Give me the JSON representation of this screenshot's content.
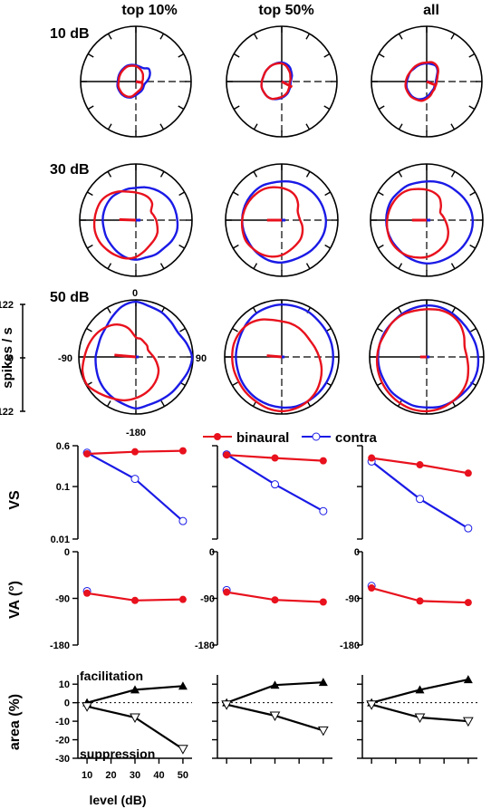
{
  "chart_data": {
    "type": "line",
    "column_titles": [
      "top 10%",
      "top 50%",
      "all"
    ],
    "colors": {
      "binaural": "#e8111d",
      "contra": "#1a1ae6",
      "axis": "#000000"
    },
    "polar": {
      "row_labels": [
        "10 dB",
        "30 dB",
        "50 dB"
      ],
      "rlim": [
        0,
        122
      ],
      "ylabel": "spikes / s",
      "radial_ticks": [
        "122",
        "0",
        "122"
      ],
      "angle_labels": {
        "top": "0",
        "left": "-90",
        "right": "90",
        "bottom": "-180"
      },
      "angles_deg": [
        0,
        15,
        30,
        45,
        60,
        75,
        90,
        105,
        120,
        135,
        150,
        165,
        180,
        195,
        210,
        225,
        240,
        255,
        270,
        285,
        300,
        315,
        330,
        345
      ],
      "panels": [
        [
          {
            "binaural": [
              34,
              30,
              26,
              22,
              18,
              16,
              14,
              15,
              16,
              18,
              20,
              22,
              26,
              34,
              38,
              40,
              40,
              40,
              38,
              38,
              38,
              38,
              38,
              36
            ],
            "contra": [
              36,
              34,
              34,
              40,
              36,
              30,
              24,
              20,
              20,
              22,
              24,
              26,
              30,
              36,
              40,
              42,
              42,
              42,
              40,
              40,
              40,
              40,
              40,
              38
            ],
            "vec_binaural": [
              100,
              14
            ],
            "vec_contra": [
              100,
              8
            ]
          },
          {
            "binaural": [
              40,
              36,
              30,
              26,
              22,
              20,
              18,
              18,
              20,
              22,
              26,
              30,
              34,
              38,
              44,
              46,
              46,
              46,
              44,
              42,
              42,
              42,
              42,
              41
            ],
            "contra": [
              42,
              40,
              36,
              30,
              26,
              22,
              20,
              20,
              22,
              24,
              28,
              32,
              36,
              40,
              44,
              46,
              46,
              46,
              44,
              42,
              42,
              42,
              42,
              42
            ],
            "vec_binaural": [
              118,
              26
            ],
            "vec_contra": [
              110,
              10
            ]
          },
          {
            "binaural": [
              42,
              44,
              42,
              36,
              28,
              24,
              22,
              22,
              22,
              24,
              26,
              32,
              38,
              44,
              46,
              48,
              48,
              48,
              46,
              44,
              42,
              42,
              42,
              42
            ],
            "contra": [
              40,
              40,
              40,
              34,
              26,
              22,
              20,
              20,
              20,
              22,
              24,
              28,
              34,
              40,
              44,
              46,
              46,
              46,
              44,
              42,
              42,
              40,
              40,
              40
            ],
            "vec_binaural": [
              112,
              22
            ],
            "vec_contra": [
              100,
              8
            ]
          }
        ],
        [
          {
            "binaural": [
              60,
              58,
              56,
              50,
              38,
              40,
              44,
              48,
              54,
              58,
              62,
              70,
              80,
              86,
              88,
              90,
              92,
              92,
              90,
              88,
              86,
              80,
              72,
              64
            ],
            "contra": [
              70,
              74,
              78,
              82,
              86,
              88,
              90,
              92,
              90,
              86,
              86,
              84,
              86,
              84,
              80,
              76,
              74,
              72,
              72,
              72,
              72,
              72,
              70,
              70
            ],
            "vec_binaural": [
              -88,
              36
            ],
            "vec_contra": [
              90,
              10
            ]
          },
          {
            "binaural": [
              70,
              66,
              60,
              50,
              40,
              38,
              40,
              46,
              52,
              58,
              62,
              68,
              76,
              82,
              86,
              88,
              90,
              88,
              86,
              84,
              82,
              80,
              78,
              74
            ],
            "contra": [
              84,
              86,
              88,
              90,
              92,
              94,
              96,
              96,
              94,
              92,
              90,
              90,
              92,
              92,
              90,
              88,
              86,
              86,
              86,
              86,
              86,
              86,
              86,
              84
            ],
            "vec_binaural": [
              -90,
              32
            ],
            "vec_contra": [
              90,
              8
            ]
          },
          {
            "binaural": [
              66,
              62,
              56,
              44,
              34,
              36,
              40,
              46,
              54,
              62,
              68,
              74,
              80,
              84,
              88,
              90,
              90,
              88,
              86,
              84,
              82,
              80,
              76,
              70
            ],
            "contra": [
              84,
              86,
              88,
              90,
              94,
              98,
              100,
              100,
              98,
              96,
              94,
              94,
              94,
              92,
              90,
              88,
              88,
              88,
              88,
              88,
              88,
              86,
              86,
              84
            ],
            "vec_binaural": [
              -90,
              32
            ],
            "vec_contra": [
              90,
              8
            ]
          }
        ],
        [
          {
            "binaural": [
              42,
              40,
              36,
              34,
              30,
              32,
              38,
              46,
              56,
              64,
              72,
              80,
              88,
              96,
              102,
              110,
              120,
              118,
              110,
              104,
              98,
              90,
              80,
              64
            ],
            "contra": [
              118,
              112,
              110,
              106,
              104,
              112,
              120,
              116,
              110,
              108,
              106,
              106,
              110,
              104,
              100,
              96,
              92,
              88,
              86,
              84,
              86,
              90,
              100,
              112
            ],
            "vec_binaural": [
              -85,
              46
            ],
            "vec_contra": [
              90,
              6
            ]
          },
          {
            "binaural": [
              76,
              74,
              72,
              70,
              70,
              74,
              80,
              88,
              96,
              104,
              110,
              114,
              116,
              114,
              110,
              108,
              106,
              106,
              106,
              106,
              104,
              100,
              92,
              82
            ],
            "contra": [
              112,
              112,
              112,
              110,
              110,
              110,
              110,
              110,
              110,
              110,
              110,
              110,
              108,
              106,
              104,
              102,
              100,
              98,
              98,
              98,
              100,
              104,
              108,
              110
            ],
            "vec_binaural": [
              -85,
              32
            ],
            "vec_contra": [
              90,
              6
            ]
          },
          {
            "binaural": [
              102,
              104,
              104,
              100,
              92,
              84,
              86,
              92,
              100,
              106,
              110,
              114,
              116,
              116,
              114,
              112,
              110,
              108,
              106,
              104,
              102,
              104,
              104,
              102
            ],
            "contra": [
              110,
              110,
              108,
              106,
              106,
              108,
              110,
              112,
              112,
              110,
              110,
              110,
              108,
              108,
              106,
              106,
              104,
              104,
              104,
              104,
              104,
              104,
              106,
              108
            ],
            "vec_binaural": [
              -90,
              14
            ],
            "vec_contra": [
              90,
              6
            ]
          }
        ]
      ]
    },
    "legend": {
      "binaural": "binaural",
      "contra": "contra"
    },
    "x": [
      10,
      30,
      50
    ],
    "xlabel": "level (dB)",
    "xticks": [
      "10",
      "20",
      "30",
      "40",
      "50"
    ],
    "vs": {
      "ylabel": "VS",
      "scale": "log",
      "ylim": [
        0.01,
        0.6
      ],
      "yticks": [
        "0.6",
        "0.1",
        "0.01"
      ],
      "series": [
        [
          {
            "name": "binaural",
            "values": [
              0.42,
              0.46,
              0.48
            ]
          },
          {
            "name": "contra",
            "values": [
              0.44,
              0.14,
              0.022
            ]
          }
        ],
        [
          {
            "name": "binaural",
            "values": [
              0.4,
              0.35,
              0.31
            ]
          },
          {
            "name": "contra",
            "values": [
              0.41,
              0.11,
              0.034
            ]
          }
        ],
        [
          {
            "name": "binaural",
            "values": [
              0.35,
              0.26,
              0.18
            ]
          },
          {
            "name": "contra",
            "values": [
              0.3,
              0.058,
              0.016
            ]
          }
        ]
      ]
    },
    "va": {
      "ylabel": "VA (°)",
      "ylim": [
        -180,
        0
      ],
      "yticks": [
        "0",
        "-90",
        "-180"
      ],
      "series": [
        [
          {
            "name": "binaural",
            "values": [
              -80,
              -94,
              -92
            ]
          },
          {
            "name": "contra",
            "values": [
              -76
            ]
          }
        ],
        [
          {
            "name": "binaural",
            "values": [
              -78,
              -93,
              -97
            ]
          },
          {
            "name": "contra",
            "values": [
              -74
            ]
          }
        ],
        [
          {
            "name": "binaural",
            "values": [
              -70,
              -95,
              -98
            ]
          },
          {
            "name": "contra",
            "values": [
              -66
            ]
          }
        ]
      ]
    },
    "area": {
      "ylabel": "area (%)",
      "ylim": [
        -30,
        15
      ],
      "yticks": [
        "10",
        "0",
        "-10",
        "-20",
        "-30"
      ],
      "annotations": {
        "top": "facilitation",
        "bottom": "suppression"
      },
      "series": [
        [
          {
            "name": "facilitation",
            "values": [
              0,
              7,
              9
            ]
          },
          {
            "name": "suppression",
            "values": [
              -2,
              -8,
              -25
            ]
          }
        ],
        [
          {
            "name": "facilitation",
            "values": [
              0,
              9.5,
              11
            ]
          },
          {
            "name": "suppression",
            "values": [
              -1,
              -7,
              -15
            ]
          }
        ],
        [
          {
            "name": "facilitation",
            "values": [
              0,
              7,
              12.5
            ]
          },
          {
            "name": "suppression",
            "values": [
              -1,
              -8,
              -10
            ]
          }
        ]
      ]
    }
  }
}
